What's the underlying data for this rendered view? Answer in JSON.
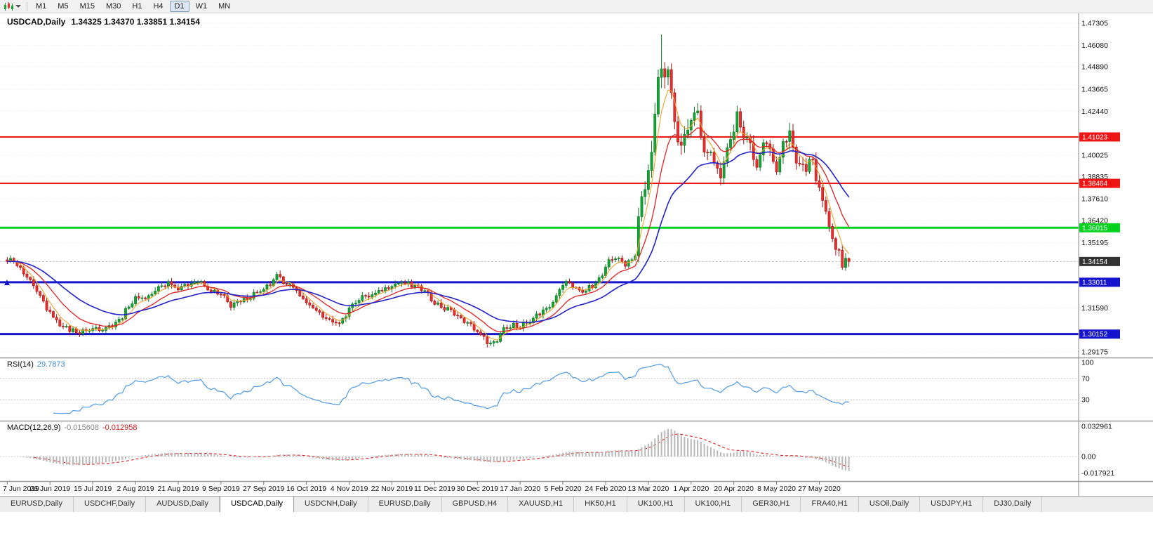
{
  "toolbar": {
    "chart_menu_icon": "candlestick-chart-icon",
    "timeframes": [
      "M1",
      "M5",
      "M15",
      "M30",
      "H1",
      "H4",
      "D1",
      "W1",
      "MN"
    ],
    "active_timeframe": "D1"
  },
  "chart": {
    "title": "USDCAD,Daily",
    "ohlc": "1.34325 1.34370 1.33851 1.34154",
    "price_axis_ticks": [
      "1.47305",
      "1.46080",
      "1.44890",
      "1.43665",
      "1.42440",
      "1.40025",
      "1.38835",
      "1.37610",
      "1.36420",
      "1.35195",
      "1.32780",
      "1.31590",
      "1.29175"
    ],
    "levels": [
      {
        "label": "1.41023",
        "value": 1.41023,
        "color": "#ee1414",
        "line_width": 2
      },
      {
        "label": "1.38464",
        "value": 1.38464,
        "color": "#ee1414",
        "line_width": 2
      },
      {
        "label": "1.36015",
        "value": 1.36015,
        "color": "#00d21e",
        "line_width": 3
      },
      {
        "label": "1.33011",
        "value": 1.33011,
        "color": "#1414cc",
        "line_width": 3
      },
      {
        "label": "1.30152",
        "value": 1.30152,
        "color": "#1414cc",
        "line_width": 3
      }
    ],
    "current_price": {
      "label": "1.34154",
      "value": 1.34154,
      "badge_color": "#333333"
    },
    "date_axis": {
      "labels": [
        "7 Jun 2019",
        "26 Jun 2019",
        "15 Jul 2019",
        "2 Aug 2019",
        "21 Aug 2019",
        "9 Sep 2019",
        "27 Sep 2019",
        "16 Oct 2019",
        "4 Nov 2019",
        "22 Nov 2019",
        "11 Dec 2019",
        "30 Dec 2019",
        "17 Jan 2020",
        "5 Feb 2020",
        "24 Feb 2020",
        "13 Mar 2020",
        "1 Apr 2020",
        "20 Apr 2020",
        "8 May 2020",
        "27 May 2020"
      ],
      "bar_indices": [
        0,
        13,
        26,
        39,
        52,
        65,
        78,
        91,
        104,
        117,
        130,
        143,
        156,
        169,
        182,
        195,
        208,
        221,
        234,
        247
      ]
    }
  },
  "indicators": {
    "rsi": {
      "name_label": "RSI(14)",
      "value_label": "29.7873",
      "value": 29.7873,
      "period": 14,
      "levels": [
        100,
        70,
        30
      ],
      "level_labels": [
        "100",
        "70",
        "30"
      ],
      "line_color": "#4f9be8"
    },
    "macd": {
      "name_label": "MACD(12,26,9)",
      "main_label": "-0.015608",
      "signal_label": "-0.012958",
      "main_value": -0.015608,
      "signal_value": -0.012958,
      "axis_labels": [
        "0.032961",
        "0.00",
        "-0.017921"
      ],
      "axis_values": [
        0.032961,
        0,
        -0.017921
      ],
      "histogram_color": "#b9b9b9",
      "signal_color": "#e32222"
    }
  },
  "chart_data": {
    "type": "candlestick",
    "symbol": "USDCAD",
    "timeframe": "Daily",
    "current_ohlc": {
      "open": 1.34325,
      "high": 1.3437,
      "low": 1.33851,
      "close": 1.34154
    },
    "bars_total": 257,
    "estimated_period_high": 1.4668,
    "estimated_period_low": 1.294,
    "x_labels": [
      "7 Jun 2019",
      "26 Jun 2019",
      "15 Jul 2019",
      "2 Aug 2019",
      "21 Aug 2019",
      "9 Sep 2019",
      "27 Sep 2019",
      "16 Oct 2019",
      "4 Nov 2019",
      "22 Nov 2019",
      "11 Dec 2019",
      "30 Dec 2019",
      "17 Jan 2020",
      "5 Feb 2020",
      "24 Feb 2020",
      "13 Mar 2020",
      "1 Apr 2020",
      "20 Apr 2020",
      "8 May 2020",
      "27 May 2020"
    ],
    "anchor_points": [
      [
        0,
        1.3415
      ],
      [
        1,
        1.3435
      ],
      [
        4,
        1.337
      ],
      [
        7,
        1.33
      ],
      [
        10,
        1.322
      ],
      [
        13,
        1.313
      ],
      [
        16,
        1.307
      ],
      [
        19,
        1.304
      ],
      [
        22,
        1.3025
      ],
      [
        26,
        1.3045
      ],
      [
        30,
        1.305
      ],
      [
        34,
        1.309
      ],
      [
        37,
        1.317
      ],
      [
        39,
        1.3215
      ],
      [
        43,
        1.322
      ],
      [
        46,
        1.327
      ],
      [
        49,
        1.33
      ],
      [
        52,
        1.327
      ],
      [
        55,
        1.329
      ],
      [
        58,
        1.331
      ],
      [
        61,
        1.326
      ],
      [
        65,
        1.323
      ],
      [
        68,
        1.3175
      ],
      [
        72,
        1.32
      ],
      [
        75,
        1.324
      ],
      [
        78,
        1.3255
      ],
      [
        80,
        1.329
      ],
      [
        82,
        1.333
      ],
      [
        84,
        1.331
      ],
      [
        87,
        1.327
      ],
      [
        89,
        1.323
      ],
      [
        91,
        1.319
      ],
      [
        94,
        1.314
      ],
      [
        97,
        1.31
      ],
      [
        100,
        1.3075
      ],
      [
        102,
        1.309
      ],
      [
        104,
        1.316
      ],
      [
        107,
        1.321
      ],
      [
        110,
        1.323
      ],
      [
        113,
        1.3255
      ],
      [
        116,
        1.327
      ],
      [
        119,
        1.33
      ],
      [
        122,
        1.3295
      ],
      [
        125,
        1.328
      ],
      [
        128,
        1.323
      ],
      [
        130,
        1.3175
      ],
      [
        133,
        1.316
      ],
      [
        136,
        1.313
      ],
      [
        139,
        1.3095
      ],
      [
        141,
        1.306
      ],
      [
        143,
        1.303
      ],
      [
        145,
        1.2995
      ],
      [
        147,
        1.296
      ],
      [
        149,
        1.2985
      ],
      [
        151,
        1.305
      ],
      [
        154,
        1.3065
      ],
      [
        156,
        1.3055
      ],
      [
        158,
        1.308
      ],
      [
        161,
        1.312
      ],
      [
        164,
        1.3155
      ],
      [
        166,
        1.32
      ],
      [
        169,
        1.329
      ],
      [
        171,
        1.33
      ],
      [
        174,
        1.325
      ],
      [
        176,
        1.326
      ],
      [
        179,
        1.329
      ],
      [
        181,
        1.335
      ],
      [
        182,
        1.34
      ],
      [
        184,
        1.343
      ],
      [
        186,
        1.343
      ],
      [
        188,
        1.34
      ],
      [
        190,
        1.342
      ],
      [
        191,
        1.345
      ],
      [
        192,
        1.366
      ],
      [
        194,
        1.379
      ],
      [
        195,
        1.39
      ],
      [
        196,
        1.399
      ],
      [
        197,
        1.424
      ],
      [
        198,
        1.448
      ],
      [
        199,
        1.444
      ],
      [
        200,
        1.442
      ],
      [
        201,
        1.449
      ],
      [
        202,
        1.432
      ],
      [
        204,
        1.406
      ],
      [
        206,
        1.409
      ],
      [
        208,
        1.418
      ],
      [
        210,
        1.423
      ],
      [
        212,
        1.403
      ],
      [
        214,
        1.402
      ],
      [
        217,
        1.389
      ],
      [
        219,
        1.404
      ],
      [
        221,
        1.412
      ],
      [
        222,
        1.422
      ],
      [
        225,
        1.409
      ],
      [
        228,
        1.395
      ],
      [
        230,
        1.407
      ],
      [
        232,
        1.403
      ],
      [
        234,
        1.392
      ],
      [
        236,
        1.408
      ],
      [
        238,
        1.412
      ],
      [
        240,
        1.396
      ],
      [
        243,
        1.392
      ],
      [
        244,
        1.4
      ],
      [
        246,
        1.388
      ],
      [
        248,
        1.376
      ],
      [
        250,
        1.361
      ],
      [
        252,
        1.347
      ],
      [
        253,
        1.349
      ],
      [
        254,
        1.339
      ],
      [
        255,
        1.343
      ],
      [
        256,
        1.34154
      ]
    ],
    "candle_colors": {
      "up": "#12a633",
      "up_border": "#0b7423",
      "down": "#ee2e2e",
      "down_border": "#a31111"
    },
    "moving_averages": [
      {
        "name": "fast",
        "period": 5,
        "color": "#f0a22e"
      },
      {
        "name": "medium",
        "period": 13,
        "color": "#e02222"
      },
      {
        "name": "slow",
        "period": 30,
        "color": "#2222cc"
      }
    ]
  },
  "tabs": {
    "items": [
      "EURUSD,Daily",
      "USDCHF,Daily",
      "AUDUSD,Daily",
      "USDCAD,Daily",
      "USDCNH,Daily",
      "EURUSD,Daily",
      "GBPUSD,H4",
      "XAUUSD,H1",
      "HK50,H1",
      "UK100,H1",
      "UK100,H1",
      "GER30,H1",
      "FRA40,H1",
      "USOil,Daily",
      "USDJPY,H1",
      "DJ30,Daily"
    ],
    "active_index": 3
  }
}
